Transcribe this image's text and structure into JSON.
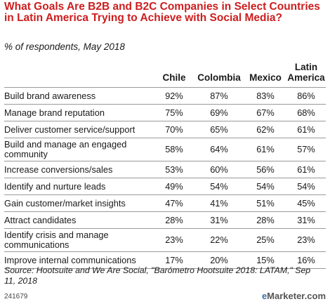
{
  "chart_data": {
    "type": "table",
    "title": "What Goals Are B2B and B2C Companies in Select Countries in Latin America Trying to Achieve with Social Media?",
    "subtitle": "% of respondents, May 2018",
    "columns": [
      "Chile",
      "Colombia",
      "Mexico",
      "Latin America"
    ],
    "rows": [
      {
        "label": "Build brand awareness",
        "values": [
          "92%",
          "87%",
          "83%",
          "86%"
        ]
      },
      {
        "label": "Manage brand reputation",
        "values": [
          "75%",
          "69%",
          "67%",
          "68%"
        ]
      },
      {
        "label": "Deliver customer service/support",
        "values": [
          "70%",
          "65%",
          "62%",
          "61%"
        ]
      },
      {
        "label": "Build and manage an engaged community",
        "values": [
          "58%",
          "64%",
          "61%",
          "57%"
        ]
      },
      {
        "label": "Increase conversions/sales",
        "values": [
          "53%",
          "60%",
          "56%",
          "61%"
        ]
      },
      {
        "label": "Identify and nurture leads",
        "values": [
          "49%",
          "54%",
          "54%",
          "54%"
        ]
      },
      {
        "label": "Gain customer/market insights",
        "values": [
          "47%",
          "41%",
          "51%",
          "45%"
        ]
      },
      {
        "label": "Attract candidates",
        "values": [
          "28%",
          "31%",
          "28%",
          "31%"
        ]
      },
      {
        "label": "Identify crisis and manage communications",
        "values": [
          "23%",
          "22%",
          "25%",
          "23%"
        ]
      },
      {
        "label": "Improve internal communications",
        "values": [
          "17%",
          "20%",
          "15%",
          "16%"
        ]
      }
    ],
    "source": "Source: Hootsuite and We Are Social, \"Barómetro Hootsuite 2018: LATAM,\" Sep 11, 2018",
    "chart_id": "241679",
    "brand": {
      "prefix": "e",
      "rest": "Marketer",
      "suffix": ".com"
    },
    "colors": {
      "title": "#cc1e1e",
      "rule": "#999999",
      "text": "#1a1a1a"
    }
  }
}
